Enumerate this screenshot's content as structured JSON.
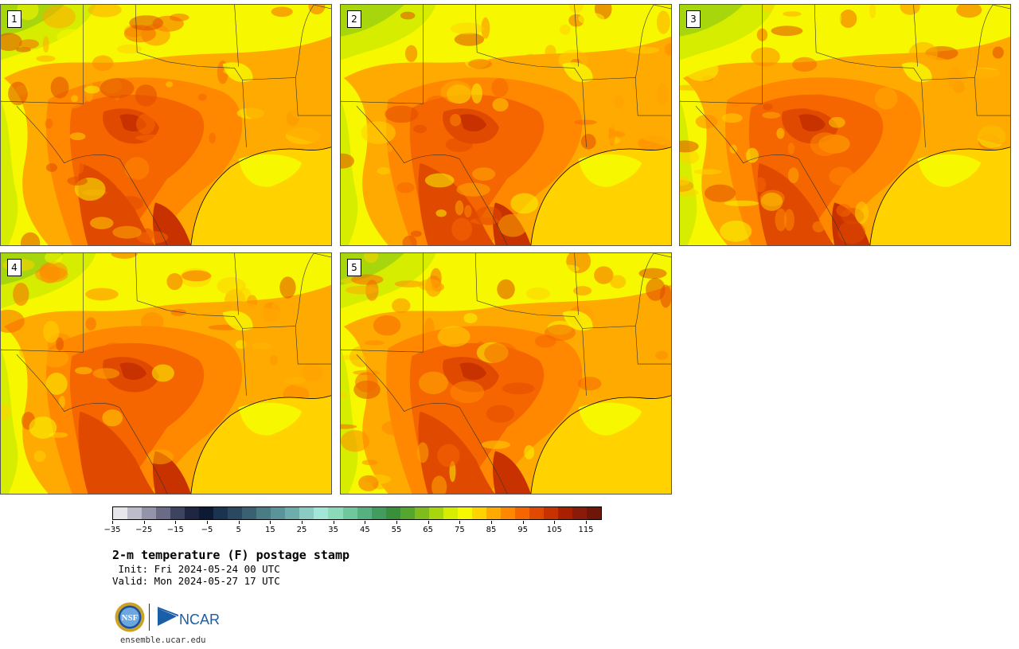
{
  "panels": [
    {
      "label": "1"
    },
    {
      "label": "2"
    },
    {
      "label": "3"
    },
    {
      "label": "4"
    },
    {
      "label": "5"
    }
  ],
  "colorbar": {
    "colors": [
      "#e6e6eb",
      "#bcbccb",
      "#9393a9",
      "#6b6b87",
      "#3d4460",
      "#1e2641",
      "#0d1a33",
      "#1a3350",
      "#28495f",
      "#3a6171",
      "#4a7c86",
      "#5b939a",
      "#6fadad",
      "#8acbc4",
      "#a3e6d8",
      "#8bdbbb",
      "#6fc79c",
      "#56b180",
      "#429c5e",
      "#3a8f3a",
      "#54a72c",
      "#7fbd1c",
      "#a8d60c",
      "#d7ed00",
      "#f7f700",
      "#ffd200",
      "#ffaa00",
      "#ff8800",
      "#f56600",
      "#e04a00",
      "#c83200",
      "#a82000",
      "#8a1a0a",
      "#6e1607"
    ],
    "tick_labels": [
      "−35",
      "−25",
      "−15",
      "−5",
      "5",
      "15",
      "25",
      "35",
      "45",
      "55",
      "65",
      "75",
      "85",
      "95",
      "105",
      "115"
    ]
  },
  "caption": {
    "title": "2-m temperature (F) postage stamp",
    "init": " Init: Fri 2024-05-24 00 UTC",
    "valid": "Valid: Mon 2024-05-27 17 UTC"
  },
  "logos": {
    "nsf_text": "NSF",
    "ncar_text": "NCAR"
  },
  "footer": {
    "url": "ensemble.ucar.edu"
  }
}
